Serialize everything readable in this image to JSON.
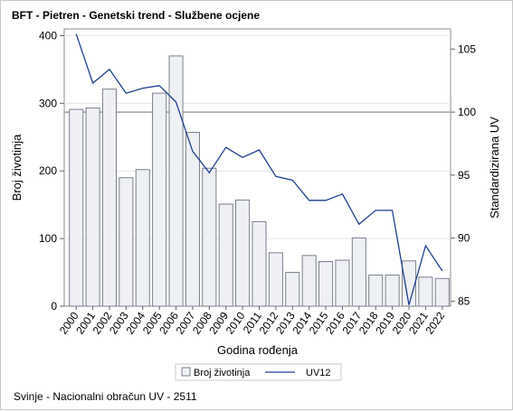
{
  "chart_data": {
    "type": "bar",
    "title": "BFT - Pietren - Genetski trend - Službene ocjene",
    "xlabel": "Godina rođenja",
    "ylabel": "Broj životinja",
    "y2label": "Standardizirana UV",
    "categories": [
      "2000",
      "2001",
      "2002",
      "2003",
      "2004",
      "2005",
      "2006",
      "2007",
      "2008",
      "2009",
      "2010",
      "2011",
      "2012",
      "2013",
      "2014",
      "2015",
      "2016",
      "2017",
      "2018",
      "2019",
      "2020",
      "2021",
      "2022"
    ],
    "ylim": [
      0,
      410
    ],
    "yticks": [
      0,
      100,
      200,
      300,
      400
    ],
    "y2lim": [
      84.6,
      106.6
    ],
    "y2ticks": [
      85,
      90,
      95,
      100,
      105
    ],
    "y2_reference": 100,
    "series": [
      {
        "name": "Broj životinja",
        "type": "bar",
        "axis": "left",
        "values": [
          291,
          293,
          321,
          190,
          202,
          315,
          370,
          257,
          204,
          151,
          157,
          125,
          79,
          50,
          75,
          66,
          68,
          101,
          46,
          46,
          67,
          43,
          41
        ]
      },
      {
        "name": "UV12",
        "type": "line",
        "axis": "right",
        "values": [
          106.2,
          102.3,
          103.4,
          101.5,
          101.9,
          102.1,
          100.8,
          96.9,
          95.2,
          97.2,
          96.4,
          97.0,
          94.9,
          94.6,
          93.0,
          93.0,
          93.5,
          91.1,
          92.2,
          92.2,
          84.7,
          89.4,
          87.4
        ]
      }
    ],
    "colors": {
      "bar_fill": "#eef0f4",
      "bar_stroke": "#7a7f8a",
      "line": "#1e3f8f",
      "reference_line": "#a0a0a0"
    },
    "legend_position": "bottom"
  },
  "footnote": "Svinje - Nacionalni obračun UV - 2511"
}
